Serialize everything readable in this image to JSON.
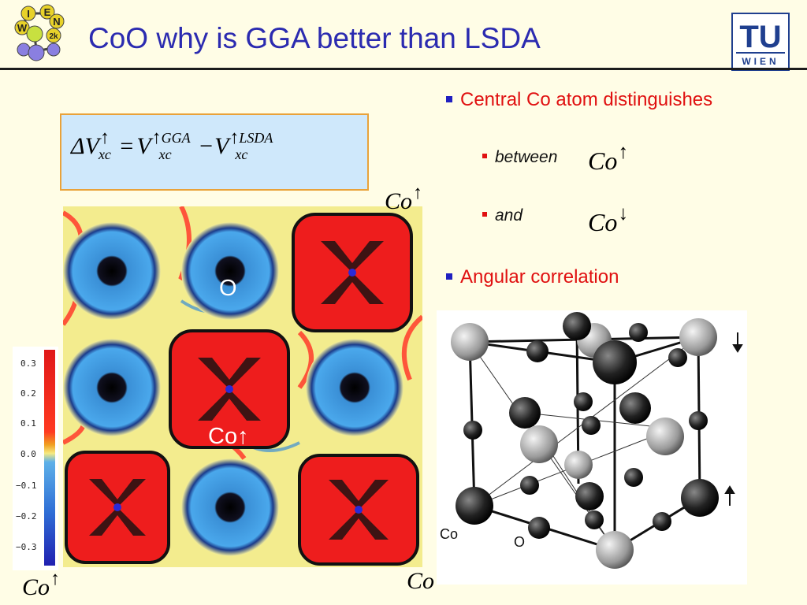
{
  "slide": {
    "title": "CoO why is GGA better than LSDA",
    "logos": {
      "left_letters": [
        "I",
        "E",
        "W",
        "N",
        "2k"
      ],
      "right_tu": "TU",
      "right_wien": "WIEN"
    }
  },
  "formula": {
    "delta": "ΔV",
    "sub": "xc",
    "eq": "=",
    "v2": "V",
    "sup2": "GGA",
    "minus": "−",
    "v3": "V",
    "sup3": "LSDA"
  },
  "bullets": {
    "b1": "Central Co atom distinguishes",
    "b1a": "between",
    "b1b": "and",
    "b2": "Angular correlation"
  },
  "labels": {
    "co": "Co",
    "o": "O",
    "up_arrow": "↑",
    "down_arrow": "↓"
  },
  "colorbar": {
    "ticks": [
      "0.3",
      "0.2",
      "0.1",
      "0.0",
      "−0.1",
      "−0.2",
      "−0.3"
    ]
  },
  "crystal": {
    "legend_co": "Co",
    "legend_o": "O"
  },
  "colors": {
    "title": "#2b2bb0",
    "bullet_red": "#e01010",
    "bullet_blue": "#2020c0"
  }
}
